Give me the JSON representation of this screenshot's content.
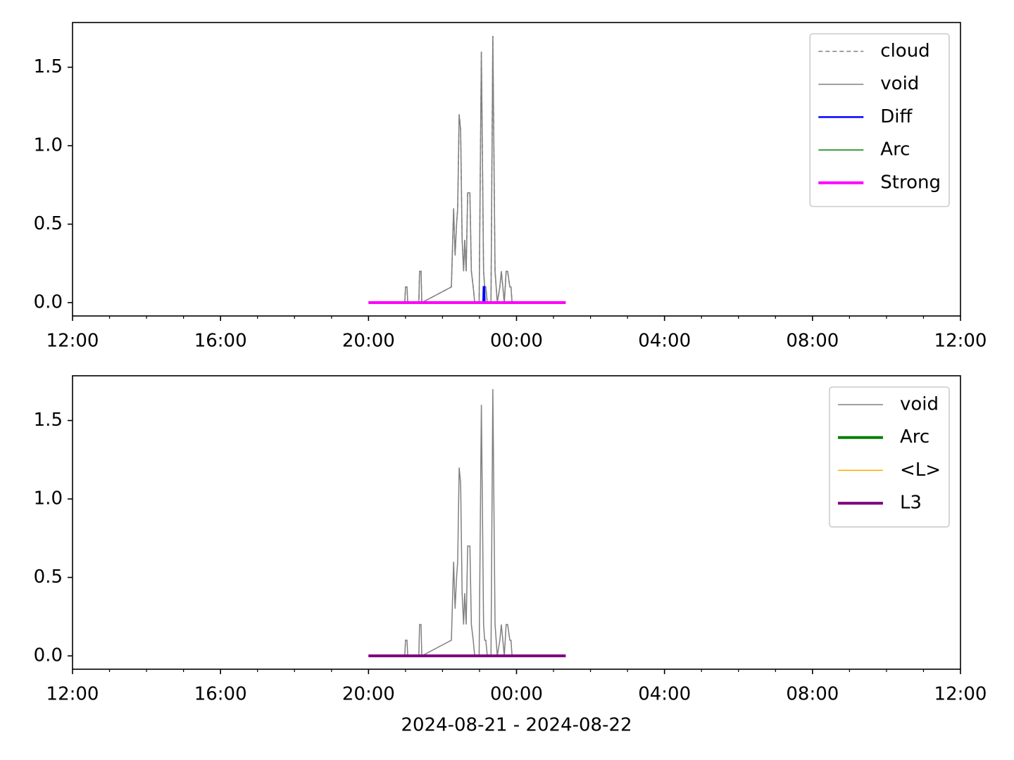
{
  "chart_data": [
    {
      "type": "line",
      "xlim": [
        0,
        24
      ],
      "ylim": [
        -0.085,
        1.785
      ],
      "xticks": [
        {
          "value": 0,
          "label": "12:00"
        },
        {
          "value": 4,
          "label": "16:00"
        },
        {
          "value": 8,
          "label": "20:00"
        },
        {
          "value": 12,
          "label": "00:00"
        },
        {
          "value": 16,
          "label": "04:00"
        },
        {
          "value": 20,
          "label": "08:00"
        },
        {
          "value": 24,
          "label": "12:00"
        }
      ],
      "xminorticks": [
        1,
        2,
        3,
        5,
        6,
        7,
        9,
        10,
        11,
        13,
        14,
        15,
        17,
        18,
        19,
        21,
        22,
        23
      ],
      "yticks": [
        {
          "value": 0,
          "label": "0.0"
        },
        0.5,
        {
          "value": 1,
          "label": "1.0"
        },
        1.5
      ],
      "legend": "upper right",
      "series": [
        {
          "name": "cloud",
          "color": "#808080",
          "linestyle": "dashed",
          "linewidth": 1.5,
          "x": [
            8.0,
            8.98,
            9.0,
            9.04,
            9.06,
            9.36,
            9.38,
            9.42,
            9.44,
            10.24,
            10.3,
            10.34,
            10.38,
            10.41,
            10.45,
            10.49,
            10.53,
            10.57,
            10.6,
            10.64,
            10.68,
            10.74,
            10.78,
            10.83,
            10.87,
            10.99,
            11.05,
            11.11,
            11.14,
            11.17,
            11.21,
            11.31,
            11.36,
            11.42,
            11.48,
            11.55,
            11.59,
            11.63,
            11.67,
            11.72,
            11.76,
            11.82,
            11.85,
            11.88,
            13.33
          ],
          "values": [
            0,
            0,
            0.1,
            0.1,
            0,
            0,
            0.2,
            0.2,
            0,
            0.1,
            0.6,
            0.3,
            0.5,
            0.6,
            1.2,
            1.1,
            0.4,
            0.2,
            0.4,
            0.2,
            0.7,
            0.7,
            0.2,
            0.1,
            0,
            0,
            1.6,
            0.2,
            0.1,
            0.1,
            0,
            0,
            1.7,
            0.2,
            0,
            0.1,
            0.2,
            0.1,
            0,
            0.2,
            0.2,
            0.1,
            0.1,
            0,
            0
          ]
        },
        {
          "name": "void",
          "color": "#808080",
          "linestyle": "solid",
          "linewidth": 1.5,
          "x": [
            8.0,
            8.98,
            9.0,
            9.04,
            9.06,
            9.36,
            9.38,
            9.42,
            9.44,
            10.24,
            10.3,
            10.34,
            10.38,
            10.41,
            10.45,
            10.49,
            10.53,
            10.57,
            10.6,
            10.64,
            10.68,
            10.74,
            10.78,
            10.83,
            10.87,
            10.99,
            11.05,
            11.11,
            11.14,
            11.17,
            11.21,
            11.31,
            11.36,
            11.42,
            11.48,
            11.55,
            11.59,
            11.63,
            11.67,
            11.72,
            11.76,
            11.82,
            11.85,
            11.88,
            13.33
          ],
          "values": [
            0,
            0,
            0.1,
            0.1,
            0,
            0,
            0.2,
            0.2,
            0,
            0.1,
            0.6,
            0.3,
            0.5,
            0.6,
            1.2,
            1.1,
            0.4,
            0.2,
            0.4,
            0.2,
            0.7,
            0.7,
            0.2,
            0.1,
            0,
            0,
            1.6,
            0.2,
            0.1,
            0.1,
            0,
            0,
            1.7,
            0.2,
            0,
            0.1,
            0.2,
            0.1,
            0,
            0.2,
            0.2,
            0.1,
            0.1,
            0,
            0
          ]
        },
        {
          "name": "Diff",
          "color": "#0000ff",
          "linestyle": "solid",
          "linewidth": 2.5,
          "x": [
            11.1,
            11.11,
            11.13,
            11.14
          ],
          "values": [
            0,
            0.1,
            0.1,
            0
          ]
        },
        {
          "name": "Arc",
          "color": "#008000",
          "linestyle": "solid",
          "linewidth": 1.5,
          "x": [
            8.0,
            13.33
          ],
          "values": [
            0,
            0
          ]
        },
        {
          "name": "Strong",
          "color": "#ff00ff",
          "linestyle": "solid",
          "linewidth": 4,
          "x": [
            8.0,
            13.33
          ],
          "values": [
            0,
            0
          ]
        }
      ]
    },
    {
      "type": "line",
      "xlabel": "2024-08-21 - 2024-08-22",
      "xlim": [
        0,
        24
      ],
      "ylim": [
        -0.085,
        1.785
      ],
      "xticks": [
        {
          "value": 0,
          "label": "12:00"
        },
        {
          "value": 4,
          "label": "16:00"
        },
        {
          "value": 8,
          "label": "20:00"
        },
        {
          "value": 12,
          "label": "00:00"
        },
        {
          "value": 16,
          "label": "04:00"
        },
        {
          "value": 20,
          "label": "08:00"
        },
        {
          "value": 24,
          "label": "12:00"
        }
      ],
      "xminorticks": [
        1,
        2,
        3,
        5,
        6,
        7,
        9,
        10,
        11,
        13,
        14,
        15,
        17,
        18,
        19,
        21,
        22,
        23
      ],
      "yticks": [
        {
          "value": 0,
          "label": "0.0"
        },
        0.5,
        {
          "value": 1,
          "label": "1.0"
        },
        1.5
      ],
      "legend": "upper right",
      "series": [
        {
          "name": "void",
          "color": "#808080",
          "linestyle": "solid",
          "linewidth": 1.5,
          "x": [
            8.0,
            8.98,
            9.0,
            9.04,
            9.06,
            9.36,
            9.38,
            9.42,
            9.44,
            10.24,
            10.3,
            10.34,
            10.38,
            10.41,
            10.45,
            10.49,
            10.53,
            10.57,
            10.6,
            10.64,
            10.68,
            10.74,
            10.78,
            10.83,
            10.87,
            10.99,
            11.05,
            11.11,
            11.14,
            11.17,
            11.21,
            11.31,
            11.36,
            11.42,
            11.48,
            11.55,
            11.59,
            11.63,
            11.67,
            11.72,
            11.76,
            11.82,
            11.85,
            11.88,
            13.33
          ],
          "values": [
            0,
            0,
            0.1,
            0.1,
            0,
            0,
            0.2,
            0.2,
            0,
            0.1,
            0.6,
            0.3,
            0.5,
            0.6,
            1.2,
            1.1,
            0.4,
            0.2,
            0.4,
            0.2,
            0.7,
            0.7,
            0.2,
            0.1,
            0,
            0,
            1.6,
            0.2,
            0.1,
            0.1,
            0,
            0,
            1.7,
            0.2,
            0,
            0.1,
            0.2,
            0.1,
            0,
            0.2,
            0.2,
            0.1,
            0.1,
            0,
            0
          ]
        },
        {
          "name": "Arc",
          "color": "#008000",
          "linestyle": "solid",
          "linewidth": 4,
          "x": [
            8.0,
            13.33
          ],
          "values": [
            0,
            0
          ]
        },
        {
          "name": "<L>",
          "color": "#ffa500",
          "linestyle": "solid",
          "linewidth": 1.5,
          "x": [
            8.0,
            13.33
          ],
          "values": [
            0,
            0
          ]
        },
        {
          "name": "L3",
          "color": "#800080",
          "linestyle": "solid",
          "linewidth": 4,
          "x": [
            8.0,
            13.33
          ],
          "values": [
            0,
            0
          ]
        }
      ]
    }
  ]
}
